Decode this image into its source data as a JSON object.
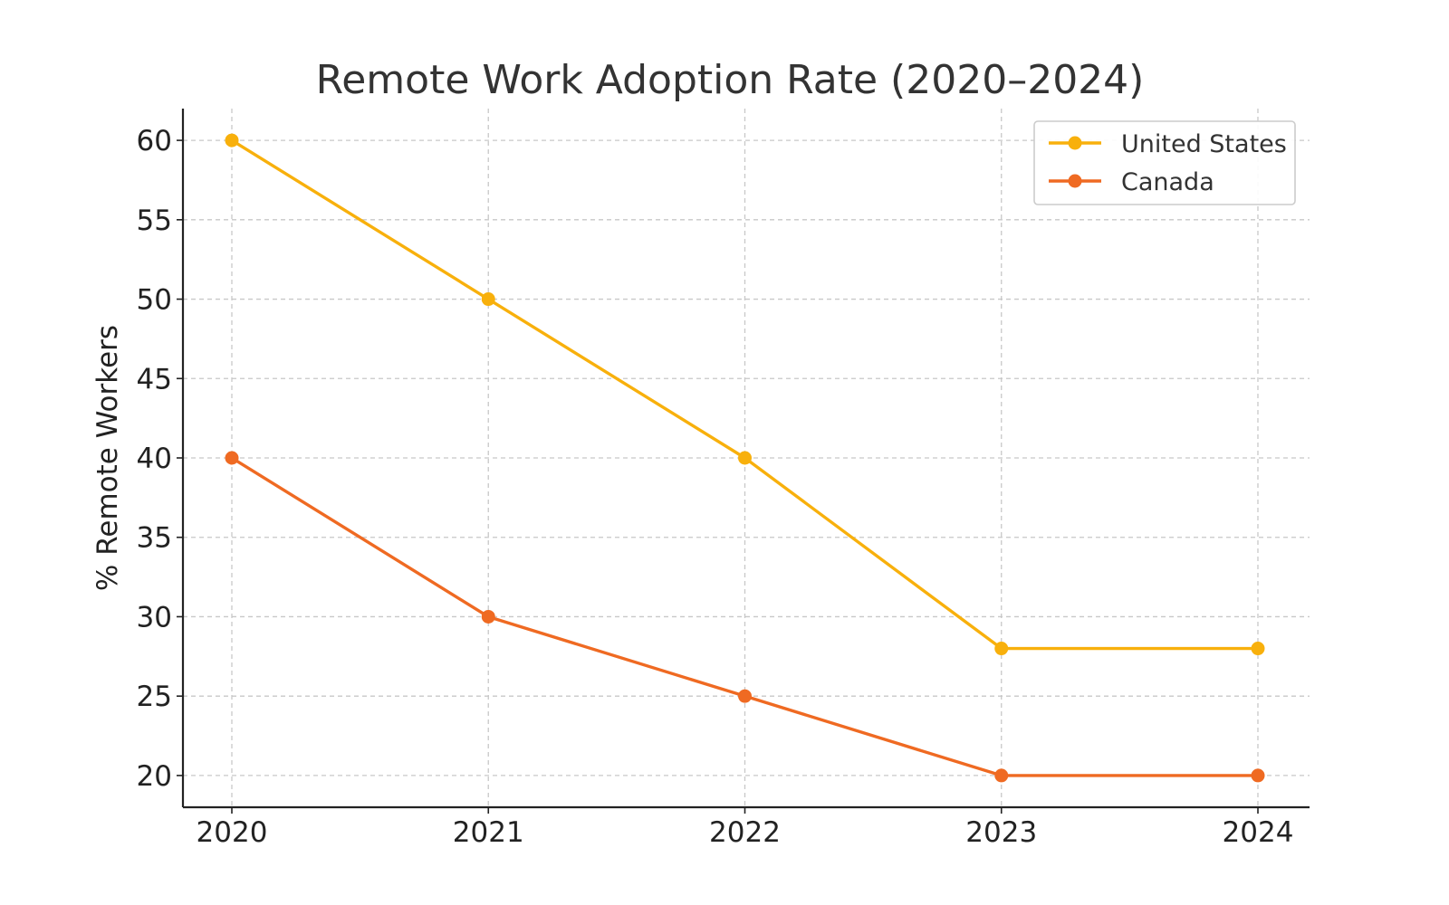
{
  "chart_data": {
    "type": "line",
    "title": "Remote Work Adoption Rate (2020–2024)",
    "xlabel": "",
    "ylabel": "% Remote Workers",
    "x": [
      "2020",
      "2021",
      "2022",
      "2023",
      "2024"
    ],
    "ylim": [
      18,
      62
    ],
    "yticks": [
      20,
      25,
      30,
      35,
      40,
      45,
      50,
      55,
      60
    ],
    "grid": true,
    "legend_position": "top-right",
    "series": [
      {
        "name": "United States",
        "color": "#f8b00c",
        "values": [
          60,
          50,
          40,
          28,
          28
        ]
      },
      {
        "name": "Canada",
        "color": "#ef6a22",
        "values": [
          40,
          30,
          25,
          20,
          20
        ]
      }
    ]
  }
}
